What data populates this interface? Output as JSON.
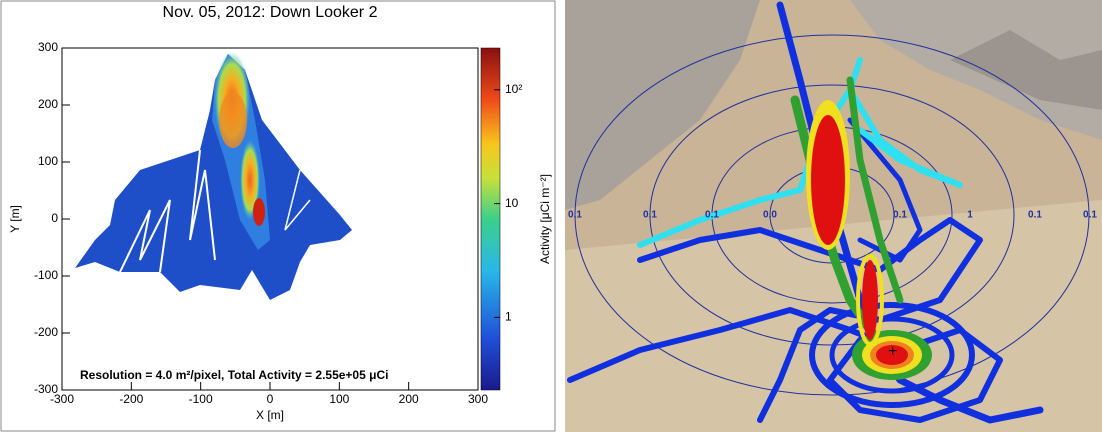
{
  "chart_data": [
    {
      "type": "heatmap",
      "title": "Nov. 05, 2012: Down Looker 2",
      "x_label": "X [m]",
      "y_label": "Y [m]",
      "xlim": [
        -300,
        300
      ],
      "ylim": [
        -300,
        300
      ],
      "xticks": [
        -300,
        -200,
        -100,
        0,
        100,
        200,
        300
      ],
      "yticks": [
        -300,
        -200,
        -100,
        0,
        100,
        200,
        300
      ],
      "colorbar": {
        "label": "Activity [μCi m⁻²]",
        "scale": "log",
        "lim": [
          0.23,
          233
        ],
        "ticks": [
          1,
          10,
          {
            "value": 100,
            "label": "10²"
          }
        ]
      },
      "annotation": "Resolution = 4.0 m²/pixel,  Total Activity = 2.55e+05 μCi"
    },
    {
      "type": "map",
      "ring_labels": [
        "0.1",
        "0.1",
        "0.1",
        "0.0",
        "0.1",
        "1",
        "0.1",
        "0.1"
      ]
    }
  ]
}
